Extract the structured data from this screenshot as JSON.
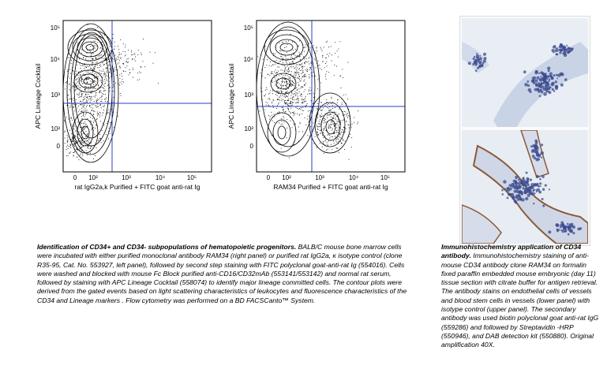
{
  "flow_left": {
    "y_label": "APC Lineage Cocktail",
    "x_label": "rat IgG2a,k Purified + FITC goat anti-rat Ig",
    "y_ticks": [
      "10⁵",
      "10⁴",
      "10³",
      "10²",
      "0"
    ],
    "x_ticks": [
      "0",
      "10²",
      "10³",
      "10⁴",
      "10⁵"
    ]
  },
  "flow_right": {
    "y_label": "APC Lineage Cocktail",
    "x_label": "RAM34 Purified + FITC goat anti-rat Ig",
    "y_ticks": [
      "10⁵",
      "10⁴",
      "10³",
      "10²",
      "0"
    ],
    "x_ticks": [
      "0",
      "10²",
      "10³",
      "10⁴",
      "10⁵"
    ]
  },
  "caption_left": {
    "heading": "Identification of CD34+ and CD34- subpopulations of hematopoietic progenitors.",
    "body": " BALB/C mouse bone marrow cells were incubated with either purified monoclonal antibody RAM34 (right panel) or purified rat IgG2a, κ isotype control (clone R35-95, Cat. No. 553927, left panel), followed by second step staining with FITC polyclonal goat-anti-rat Ig (554016).  Cells were washed and blocked with mouse Fc Block purified anti-CD16/CD32mAb (553141/553142) and normal rat serum, followed by staining with APC Lineage Cocktail (558074) to identify major lineage committed cells. The contour plots were derived from the gated events based on light scattering characteristics of leukocytes and fluorescence characteristics of the CD34 and Lineage markers . Flow cytometry was performed on a BD FACSCanto™ System."
  },
  "caption_right": {
    "heading": "Immunohistochemistry application of CD34 antibody.",
    "body": " Immunohistochemistry staining of anti-mouse CD34 antibody clone RAM34 on formalin fixed paraffin embedded mouse embryonic (day 11) tissue section with citrate buffer for antigen retrieval. The antibody stains on endothelial cells of vessels and blood stem cells in vessels (lower panel) with isotype control (upper panel). The secondary antibody was used biotin polyclonal goat anti-rat IgG (559286) and followed by Streptavidin -HRP (550946), and DAB detection kit (550880). Original amplification 40X."
  },
  "colors": {
    "gate": "#2b3fc4",
    "tissue_bg": "#e6ecf3",
    "nuclei": "#3a4a8c",
    "dab_stain": "#8a5a3a"
  }
}
